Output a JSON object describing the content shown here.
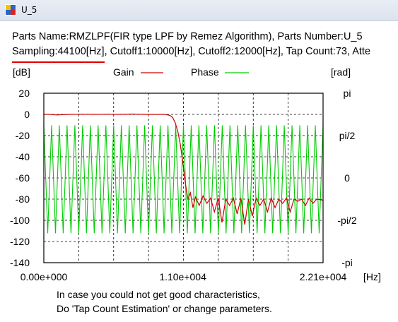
{
  "window": {
    "title": "U_5",
    "icon_name": "dsp-app-icon"
  },
  "info": {
    "line1": "Parts Name:RMZLPF(FIR type LPF by Remez Algorithm), Parts Number:U_5",
    "line2_highlight": "Sampling:44100[Hz]",
    "line2_rest": ", Cutoff1:10000[Hz], Cutoff2:12000[Hz], Tap Count:73, Atte"
  },
  "hint": {
    "line1": "In case you could not get good characteristics,",
    "line2": "Do 'Tap Count Estimation' or change parameters."
  },
  "chart_data": {
    "type": "line",
    "left_unit": "[dB]",
    "right_unit": "[rad]",
    "x_unit": "[Hz]",
    "xlim": [
      0,
      22100
    ],
    "ylim": [
      -140,
      20
    ],
    "y2lim": [
      -3.1416,
      3.1416
    ],
    "grid": true,
    "legend_placement": "top",
    "left_ticks": [
      "20",
      "0",
      "-20",
      "-40",
      "-60",
      "-80",
      "-100",
      "-120",
      "-140"
    ],
    "left_tick_values": [
      20,
      0,
      -20,
      -40,
      -60,
      -80,
      -100,
      -120,
      -140
    ],
    "right_ticks": [
      "pi",
      "pi/2",
      "0",
      "-pi/2",
      "-pi"
    ],
    "right_tick_values": [
      3.1416,
      1.5708,
      0,
      -1.5708,
      -3.1416
    ],
    "x_ticks": [
      "0.00e+000",
      "1.10e+004",
      "2.21e+004"
    ],
    "x_tick_values": [
      0,
      11000,
      22100
    ],
    "series": [
      {
        "name": "Gain",
        "axis": "left",
        "color": "#cc0000",
        "x": [
          0,
          500,
          1000,
          2000,
          3000,
          4000,
          5000,
          6000,
          7000,
          8000,
          9000,
          9600,
          10000,
          10200,
          10400,
          10600,
          10800,
          11000,
          11200,
          11400,
          11600,
          11800,
          12000,
          12300,
          12600,
          12900,
          13200,
          13500,
          13800,
          14100,
          14400,
          14700,
          15000,
          15300,
          15600,
          15900,
          16200,
          16500,
          16800,
          17100,
          17400,
          17700,
          18000,
          18300,
          18600,
          18900,
          19200,
          19500,
          19800,
          20100,
          20400,
          20700,
          21000,
          21300,
          21600,
          22100
        ],
        "y": [
          0,
          0,
          -0.5,
          0,
          0.2,
          0,
          0.2,
          0,
          0.3,
          0,
          0,
          0,
          -1,
          -3,
          -8,
          -16,
          -28,
          -45,
          -65,
          -80,
          -74,
          -88,
          -78,
          -86,
          -77,
          -84,
          -79,
          -92,
          -79,
          -102,
          -80,
          -86,
          -79,
          -94,
          -79,
          -104,
          -80,
          -96,
          -79,
          -86,
          -80,
          -92,
          -79,
          -88,
          -80,
          -84,
          -79,
          -92,
          -80,
          -82,
          -80,
          -86,
          -79,
          -84,
          -80,
          -81
        ]
      },
      {
        "name": "Phase",
        "axis": "right",
        "color": "#00cc00",
        "peak_rad": 1.95,
        "trough_rad": -2.05,
        "cycles": 36
      }
    ]
  }
}
